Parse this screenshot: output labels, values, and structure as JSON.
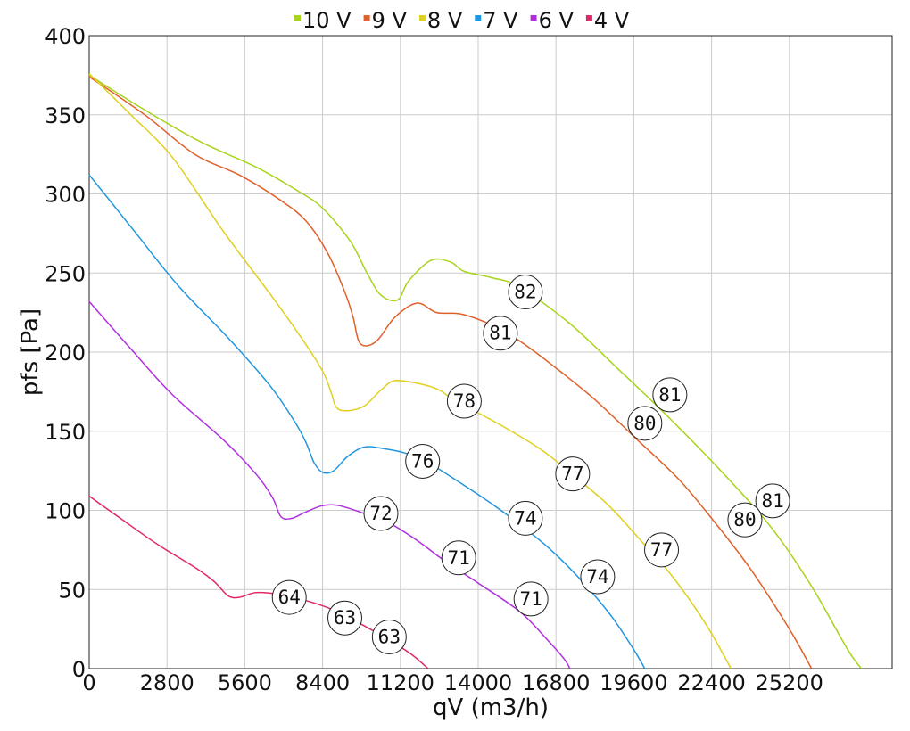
{
  "chart_data": {
    "type": "line",
    "title": "",
    "xlabel": "qV (m3/h)",
    "ylabel": "pfs [Pa]",
    "xlim": [
      0,
      28900
    ],
    "ylim": [
      0,
      400
    ],
    "grid": true,
    "legend_position": "top",
    "x_ticks": [
      0,
      2800,
      5600,
      8400,
      11200,
      14000,
      16800,
      19600,
      22400,
      25200
    ],
    "y_ticks": [
      0,
      50,
      100,
      150,
      200,
      250,
      300,
      350,
      400
    ],
    "series": [
      {
        "name": "10 V",
        "color": "#a8d41c",
        "points": [
          [
            0,
            375
          ],
          [
            2000,
            353
          ],
          [
            4000,
            333
          ],
          [
            6000,
            317
          ],
          [
            7500,
            302
          ],
          [
            8400,
            291
          ],
          [
            9400,
            270
          ],
          [
            10000,
            250
          ],
          [
            10500,
            236
          ],
          [
            11100,
            233
          ],
          [
            11500,
            245
          ],
          [
            12300,
            258
          ],
          [
            13000,
            257
          ],
          [
            13500,
            251
          ],
          [
            14500,
            247
          ],
          [
            15500,
            241
          ],
          [
            17300,
            218
          ],
          [
            19000,
            190
          ],
          [
            20900,
            158
          ],
          [
            23000,
            120
          ],
          [
            24600,
            88
          ],
          [
            26000,
            52
          ],
          [
            27300,
            12
          ],
          [
            27800,
            0
          ]
        ]
      },
      {
        "name": "9 V",
        "color": "#e0602a",
        "points": [
          [
            0,
            374
          ],
          [
            2000,
            350
          ],
          [
            3800,
            325
          ],
          [
            5400,
            312
          ],
          [
            6800,
            297
          ],
          [
            7800,
            283
          ],
          [
            8600,
            262
          ],
          [
            9200,
            238
          ],
          [
            9500,
            222
          ],
          [
            9700,
            207
          ],
          [
            10000,
            204
          ],
          [
            10400,
            208
          ],
          [
            11000,
            222
          ],
          [
            11800,
            231
          ],
          [
            12500,
            225
          ],
          [
            13400,
            224
          ],
          [
            14500,
            217
          ],
          [
            15500,
            207
          ],
          [
            16800,
            190
          ],
          [
            18200,
            170
          ],
          [
            19700,
            145
          ],
          [
            21200,
            120
          ],
          [
            22400,
            95
          ],
          [
            23800,
            63
          ],
          [
            25200,
            25
          ],
          [
            26000,
            0
          ]
        ]
      },
      {
        "name": "8 V",
        "color": "#e0d020",
        "points": [
          [
            0,
            376
          ],
          [
            1500,
            350
          ],
          [
            3000,
            323
          ],
          [
            4800,
            277
          ],
          [
            6500,
            237
          ],
          [
            7600,
            210
          ],
          [
            8400,
            188
          ],
          [
            8700,
            175
          ],
          [
            8900,
            165
          ],
          [
            9300,
            163
          ],
          [
            9900,
            166
          ],
          [
            10500,
            176
          ],
          [
            11000,
            182
          ],
          [
            11900,
            180
          ],
          [
            12600,
            176
          ],
          [
            13200,
            169
          ],
          [
            14800,
            154
          ],
          [
            16300,
            138
          ],
          [
            17500,
            121
          ],
          [
            18700,
            103
          ],
          [
            19900,
            80
          ],
          [
            21000,
            58
          ],
          [
            22200,
            28
          ],
          [
            23100,
            0
          ]
        ]
      },
      {
        "name": "7 V",
        "color": "#2196e0",
        "points": [
          [
            0,
            312
          ],
          [
            1600,
            277
          ],
          [
            3200,
            242
          ],
          [
            5000,
            209
          ],
          [
            6500,
            179
          ],
          [
            7400,
            156
          ],
          [
            7800,
            143
          ],
          [
            8100,
            130
          ],
          [
            8400,
            124
          ],
          [
            8800,
            125
          ],
          [
            9300,
            134
          ],
          [
            9900,
            140
          ],
          [
            10600,
            139
          ],
          [
            11400,
            136
          ],
          [
            12300,
            129
          ],
          [
            13300,
            118
          ],
          [
            14500,
            104
          ],
          [
            15800,
            87
          ],
          [
            16800,
            72
          ],
          [
            17800,
            54
          ],
          [
            18800,
            33
          ],
          [
            19600,
            12
          ],
          [
            20000,
            0
          ]
        ]
      },
      {
        "name": "6 V",
        "color": "#b030e0",
        "points": [
          [
            0,
            232
          ],
          [
            1500,
            202
          ],
          [
            3000,
            173
          ],
          [
            4800,
            145
          ],
          [
            6000,
            123
          ],
          [
            6600,
            108
          ],
          [
            6900,
            96
          ],
          [
            7300,
            95
          ],
          [
            7800,
            99
          ],
          [
            8400,
            103
          ],
          [
            9000,
            103
          ],
          [
            9900,
            98
          ],
          [
            10800,
            92
          ],
          [
            11800,
            81
          ],
          [
            12800,
            68
          ],
          [
            14000,
            54
          ],
          [
            15500,
            36
          ],
          [
            16500,
            18
          ],
          [
            17100,
            6
          ],
          [
            17300,
            0
          ]
        ]
      },
      {
        "name": "4 V",
        "color": "#e0286a",
        "points": [
          [
            0,
            109
          ],
          [
            1200,
            94
          ],
          [
            2500,
            78
          ],
          [
            3800,
            64
          ],
          [
            4500,
            55
          ],
          [
            5000,
            46
          ],
          [
            5400,
            45
          ],
          [
            6000,
            48
          ],
          [
            6800,
            47
          ],
          [
            7800,
            43
          ],
          [
            8800,
            37
          ],
          [
            9800,
            28
          ],
          [
            10800,
            18
          ],
          [
            11600,
            9
          ],
          [
            12200,
            0
          ]
        ]
      }
    ],
    "annotations": [
      {
        "label": "82",
        "x": 15700,
        "y": 238
      },
      {
        "label": "81",
        "x": 14800,
        "y": 212
      },
      {
        "label": "81",
        "x": 20900,
        "y": 173
      },
      {
        "label": "80",
        "x": 20000,
        "y": 155
      },
      {
        "label": "81",
        "x": 24600,
        "y": 106
      },
      {
        "label": "80",
        "x": 23600,
        "y": 94
      },
      {
        "label": "78",
        "x": 13500,
        "y": 169
      },
      {
        "label": "77",
        "x": 17400,
        "y": 123
      },
      {
        "label": "77",
        "x": 20600,
        "y": 75
      },
      {
        "label": "76",
        "x": 12000,
        "y": 131
      },
      {
        "label": "74",
        "x": 15700,
        "y": 95
      },
      {
        "label": "74",
        "x": 18300,
        "y": 58
      },
      {
        "label": "72",
        "x": 10500,
        "y": 98
      },
      {
        "label": "71",
        "x": 13300,
        "y": 70
      },
      {
        "label": "71",
        "x": 15900,
        "y": 44
      },
      {
        "label": "64",
        "x": 7200,
        "y": 45
      },
      {
        "label": "63",
        "x": 9200,
        "y": 32
      },
      {
        "label": "63",
        "x": 10800,
        "y": 20
      }
    ]
  }
}
